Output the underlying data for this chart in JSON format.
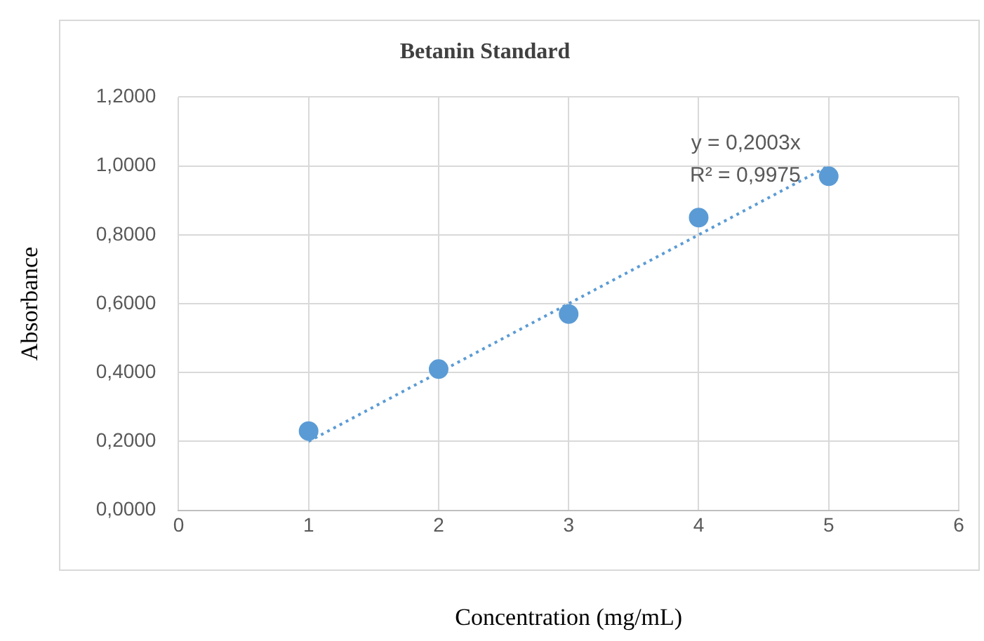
{
  "chart_data": {
    "type": "scatter",
    "title": "Betanin Standard",
    "xlabel": "Concentration (mg/mL)",
    "ylabel": "Absorbance",
    "series": [
      {
        "color": "#5b9bd5",
        "x": [
          1,
          2,
          3,
          4,
          5
        ],
        "values": [
          0.23,
          0.41,
          0.57,
          0.85,
          0.97
        ],
        "marker": "circle"
      },
      {
        "type": "line",
        "color": "#5b9bd5",
        "x": [
          1,
          5
        ],
        "values": [
          0.2,
          1.0
        ],
        "marker": "none",
        "line_style": "dotted"
      }
    ],
    "annotations": [
      "y = 0,2003x",
      "R² = 0,9975"
    ],
    "xlim": [
      0,
      6
    ],
    "xticks": [
      0,
      1,
      2,
      3,
      4,
      5,
      6
    ],
    "ylim": [
      0,
      1.2
    ],
    "yticks": [
      {
        "value": 0,
        "label": "0,0000"
      },
      {
        "value": 0.2,
        "label": "0,2000"
      },
      {
        "value": 0.4,
        "label": "0,4000"
      },
      {
        "value": 0.6,
        "label": "0,6000"
      },
      {
        "value": 0.8,
        "label": "0,8000"
      },
      {
        "value": 1,
        "label": "1,0000"
      },
      {
        "value": 1.2,
        "label": "1,2000"
      }
    ],
    "grid": true,
    "legend": false
  }
}
